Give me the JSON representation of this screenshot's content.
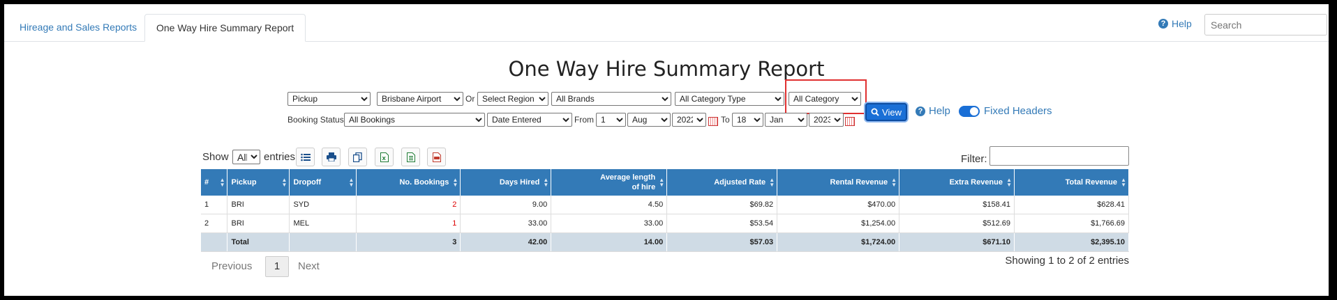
{
  "tabs": [
    {
      "label": "Hireage and Sales Reports",
      "active": false
    },
    {
      "label": "One Way Hire Summary Report",
      "active": true
    }
  ],
  "top": {
    "help_label": "Help",
    "search_placeholder": "Search"
  },
  "title": "One Way Hire Summary Report",
  "filters": {
    "pickup_type": "Pickup",
    "location": "Brisbane Airport",
    "or_label": "Or",
    "region": "Select Region",
    "brands": "All Brands",
    "category_type": "All Category Type",
    "category": "All Category",
    "booking_status_label": "Booking Status",
    "booking_status": "All Bookings",
    "date_type": "Date Entered",
    "from_label": "From",
    "from_day": "1",
    "from_month": "Aug",
    "from_year": "2022",
    "to_label": "To",
    "to_day": "18",
    "to_month": "Jan",
    "to_year": "2023",
    "view_label": "View",
    "help_label": "Help",
    "fixed_headers_label": "Fixed Headers",
    "fixed_headers_on": true
  },
  "table_controls": {
    "show_label": "Show",
    "entries_value": "All",
    "entries_label": "entries",
    "filter_label": "Filter:",
    "icons": [
      "list-icon",
      "print-icon",
      "copy-icon",
      "excel-icon",
      "csv-icon",
      "pdf-icon"
    ]
  },
  "table": {
    "headers": [
      "#",
      "Pickup",
      "Dropoff",
      "No. Bookings",
      "Days Hired",
      "Average length of hire",
      "Adjusted Rate",
      "Rental Revenue",
      "Extra Revenue",
      "Total Revenue"
    ],
    "rows": [
      [
        "1",
        "BRI",
        "SYD",
        "2",
        "9.00",
        "4.50",
        "$69.82",
        "$470.00",
        "$158.41",
        "$628.41"
      ],
      [
        "2",
        "BRI",
        "MEL",
        "1",
        "33.00",
        "33.00",
        "$53.54",
        "$1,254.00",
        "$512.69",
        "$1,766.69"
      ]
    ],
    "total": [
      "",
      "Total",
      "",
      "3",
      "42.00",
      "14.00",
      "$57.03",
      "$1,724.00",
      "$671.10",
      "$2,395.10"
    ]
  },
  "pagination": {
    "previous": "Previous",
    "page": "1",
    "next": "Next",
    "showing": "Showing 1 to 2 of 2 entries"
  },
  "colors": {
    "header_blue": "#337ab7",
    "highlight_red": "#e03030",
    "link_red": "#dd0000"
  }
}
